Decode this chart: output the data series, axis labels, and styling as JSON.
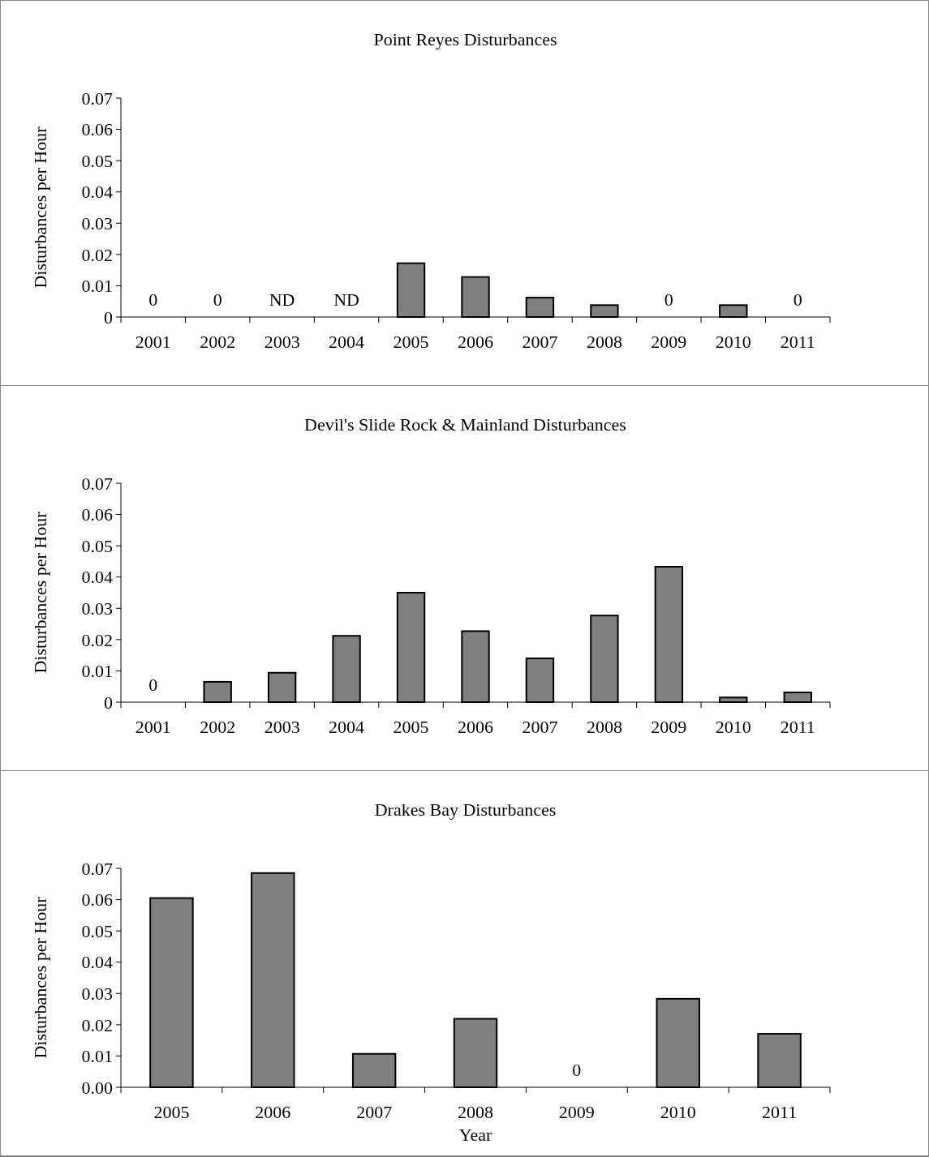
{
  "chart_data": [
    {
      "type": "bar",
      "title": "Point Reyes Disturbances",
      "ylabel": "Disturbances per Hour",
      "categories": [
        "2001",
        "2002",
        "2003",
        "2004",
        "2005",
        "2006",
        "2007",
        "2008",
        "2009",
        "2010",
        "2011"
      ],
      "series": [
        {
          "color": "#808080",
          "values": [
            0,
            0,
            null,
            null,
            0.0172,
            0.0128,
            0.0062,
            0.0038,
            0,
            0.0038,
            0
          ],
          "value_labels": [
            "0",
            "0",
            "ND",
            "ND",
            null,
            null,
            null,
            null,
            "0",
            null,
            "0"
          ]
        }
      ],
      "ylim": [
        0,
        0.07
      ],
      "yticks": [
        0,
        0.01,
        0.02,
        0.03,
        0.04,
        0.05,
        0.06,
        0.07
      ],
      "grid": false
    },
    {
      "type": "bar",
      "title": "Devil's Slide Rock & Mainland Disturbances",
      "ylabel": "Disturbances per Hour",
      "categories": [
        "2001",
        "2002",
        "2003",
        "2004",
        "2005",
        "2006",
        "2007",
        "2008",
        "2009",
        "2010",
        "2011"
      ],
      "series": [
        {
          "color": "#808080",
          "values": [
            0,
            0.0065,
            0.0094,
            0.0212,
            0.035,
            0.0227,
            0.014,
            0.0277,
            0.0433,
            0.0015,
            0.0031
          ],
          "value_labels": [
            "0",
            null,
            null,
            null,
            null,
            null,
            null,
            null,
            null,
            null,
            null
          ]
        }
      ],
      "ylim": [
        0,
        0.07
      ],
      "yticks": [
        0,
        0.01,
        0.02,
        0.03,
        0.04,
        0.05,
        0.06,
        0.07
      ],
      "grid": false
    },
    {
      "type": "bar",
      "title": "Drakes Bay Disturbances",
      "ylabel": "Disturbances per Hour",
      "xlabel": "Year",
      "categories": [
        "2005",
        "2006",
        "2007",
        "2008",
        "2009",
        "2010",
        "2011"
      ],
      "series": [
        {
          "color": "#808080",
          "values": [
            0.0605,
            0.0685,
            0.0107,
            0.0219,
            0,
            0.0283,
            0.0171
          ],
          "value_labels": [
            null,
            null,
            null,
            null,
            "0",
            null,
            null
          ]
        }
      ],
      "ylim": [
        0,
        0.07
      ],
      "yticks": [
        {
          "value": 0,
          "label": "0.00"
        },
        0.01,
        0.02,
        0.03,
        0.04,
        0.05,
        0.06,
        0.07
      ],
      "grid": false
    }
  ]
}
